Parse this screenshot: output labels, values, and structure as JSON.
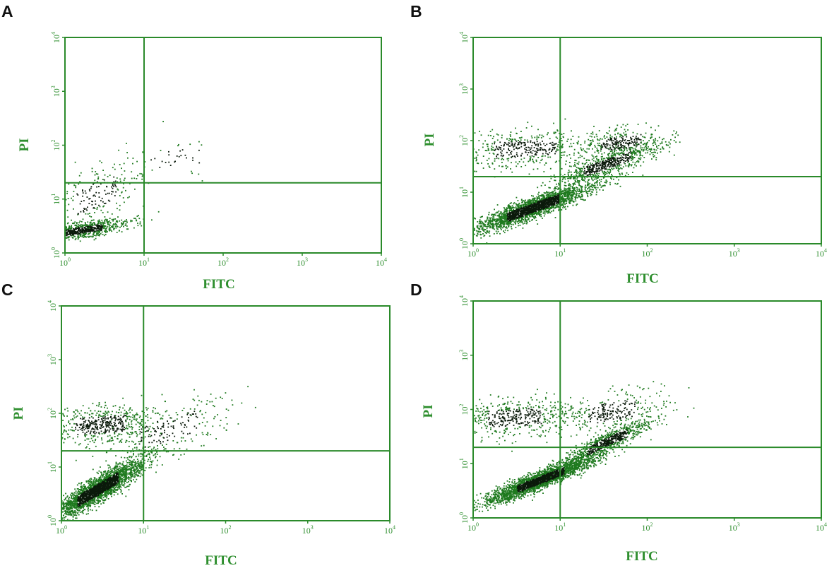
{
  "chart_data": [
    {
      "type": "scatter",
      "panel_label": "A",
      "xlabel": "FITC",
      "ylabel": "PI",
      "xscale": "log",
      "yscale": "log",
      "xlim": [
        1,
        10000
      ],
      "ylim": [
        1,
        10000
      ],
      "xticks": [
        "10^0",
        "10^1",
        "10^2",
        "10^3",
        "10^4"
      ],
      "yticks": [
        "10^0",
        "10^1",
        "10^2",
        "10^3",
        "10^4"
      ],
      "quadrant_gate": {
        "x": 10,
        "y": 20
      },
      "populations": [
        {
          "name": "",
          "n": 850,
          "center": [
            1.6,
            2.6
          ],
          "spread": [
            0.5,
            0.8
          ],
          "rho": 0.7,
          "x_range": [
            1,
            10000
          ],
          "y_range": [
            1,
            10000
          ]
        },
        {
          "name": "",
          "n": 220,
          "center": [
            2.5,
            12
          ],
          "spread": [
            1.9,
            2.0
          ],
          "rho": 0.5,
          "x_range": [
            1,
            10000
          ],
          "y_range": [
            1,
            10000
          ]
        },
        {
          "name": "",
          "n": 45,
          "center": [
            25,
            55
          ],
          "spread": [
            2.2,
            1.6
          ],
          "rho": 0.3,
          "x_range": [
            1,
            10000
          ],
          "y_range": [
            1,
            10000
          ]
        }
      ],
      "color": "#1f7a1f"
    },
    {
      "type": "scatter",
      "panel_label": "B",
      "xlabel": "FITC",
      "ylabel": "PI",
      "xscale": "log",
      "yscale": "log",
      "xlim": [
        1,
        10000
      ],
      "ylim": [
        1,
        10000
      ],
      "xticks": [
        "10^0",
        "10^1",
        "10^2",
        "10^3",
        "10^4"
      ],
      "yticks": [
        "10^0",
        "10^1",
        "10^2",
        "10^3",
        "10^4"
      ],
      "quadrant_gate": {
        "x": 10,
        "y": 20
      },
      "populations": [
        {
          "name": "",
          "n": 2400,
          "center": [
            5,
            5
          ],
          "spread": [
            2.2,
            1.7
          ],
          "rho": 0.9,
          "x_range": [
            1,
            10000
          ],
          "y_range": [
            1,
            10000
          ]
        },
        {
          "name": "",
          "n": 700,
          "center": [
            35,
            35
          ],
          "spread": [
            2.0,
            1.6
          ],
          "rho": 0.85,
          "x_range": [
            1,
            10000
          ],
          "y_range": [
            1,
            10000
          ]
        },
        {
          "name": "",
          "n": 480,
          "center": [
            4,
            70
          ],
          "spread": [
            2.5,
            1.5
          ],
          "rho": 0.2,
          "x_range": [
            1,
            10000
          ],
          "y_range": [
            1,
            10000
          ]
        },
        {
          "name": "",
          "n": 300,
          "center": [
            50,
            90
          ],
          "spread": [
            1.8,
            1.4
          ],
          "rho": 0.4,
          "x_range": [
            1,
            10000
          ],
          "y_range": [
            1,
            10000
          ]
        }
      ],
      "color": "#1f7a1f"
    },
    {
      "type": "scatter",
      "panel_label": "C",
      "xlabel": "FITC",
      "ylabel": "PI",
      "xscale": "log",
      "yscale": "log",
      "xlim": [
        1,
        10000
      ],
      "ylim": [
        1,
        10000
      ],
      "xticks": [
        "10^0",
        "10^1",
        "10^2",
        "10^3",
        "10^4"
      ],
      "yticks": [
        "10^0",
        "10^1",
        "10^2",
        "10^3",
        "10^4"
      ],
      "quadrant_gate": {
        "x": 10,
        "y": 20
      },
      "populations": [
        {
          "name": "",
          "n": 2600,
          "center": [
            2.8,
            3.8
          ],
          "spread": [
            1.9,
            1.9
          ],
          "rho": 0.9,
          "x_range": [
            1,
            10000
          ],
          "y_range": [
            1,
            10000
          ]
        },
        {
          "name": "",
          "n": 600,
          "center": [
            3,
            60
          ],
          "spread": [
            2.2,
            1.5
          ],
          "rho": 0.2,
          "x_range": [
            1,
            10000
          ],
          "y_range": [
            1,
            10000
          ]
        },
        {
          "name": "",
          "n": 250,
          "center": [
            20,
            50
          ],
          "spread": [
            2.5,
            2.0
          ],
          "rho": 0.6,
          "x_range": [
            1,
            10000
          ],
          "y_range": [
            1,
            10000
          ]
        }
      ],
      "color": "#1f7a1f"
    },
    {
      "type": "scatter",
      "panel_label": "D",
      "xlabel": "FITC",
      "ylabel": "PI",
      "xscale": "log",
      "yscale": "log",
      "xlim": [
        1,
        10000
      ],
      "ylim": [
        1,
        10000
      ],
      "xticks": [
        "10^0",
        "10^1",
        "10^2",
        "10^3",
        "10^4"
      ],
      "yticks": [
        "10^0",
        "10^1",
        "10^2",
        "10^3",
        "10^4"
      ],
      "quadrant_gate": {
        "x": 10,
        "y": 20
      },
      "populations": [
        {
          "name": "",
          "n": 2500,
          "center": [
            6,
            5
          ],
          "spread": [
            2.0,
            1.6
          ],
          "rho": 0.92,
          "x_range": [
            1,
            10000
          ],
          "y_range": [
            1,
            10000
          ]
        },
        {
          "name": "",
          "n": 800,
          "center": [
            35,
            25
          ],
          "spread": [
            1.8,
            1.6
          ],
          "rho": 0.9,
          "x_range": [
            1,
            10000
          ],
          "y_range": [
            1,
            10000
          ]
        },
        {
          "name": "",
          "n": 500,
          "center": [
            3,
            70
          ],
          "spread": [
            2.2,
            1.5
          ],
          "rho": 0.2,
          "x_range": [
            1,
            10000
          ],
          "y_range": [
            1,
            10000
          ]
        },
        {
          "name": "",
          "n": 300,
          "center": [
            40,
            90
          ],
          "spread": [
            2.0,
            1.6
          ],
          "rho": 0.4,
          "x_range": [
            1,
            10000
          ],
          "y_range": [
            1,
            10000
          ]
        }
      ],
      "color": "#1f7a1f"
    }
  ]
}
